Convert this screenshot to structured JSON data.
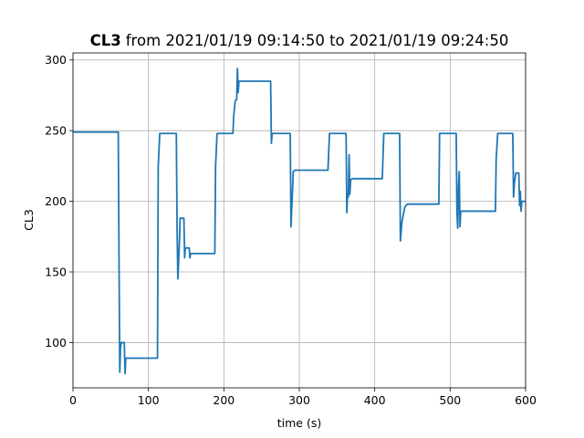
{
  "chart_data": {
    "type": "line",
    "title_bold": "CL3",
    "title": "from 2021/01/19 09:14:50 to 2021/01/19 09:24:50",
    "xlabel": "time (s)",
    "ylabel": "CL3",
    "xlim": [
      0,
      600
    ],
    "ylim": [
      68,
      305
    ],
    "xticks": [
      0,
      100,
      200,
      300,
      400,
      500,
      600
    ],
    "yticks": [
      100,
      150,
      200,
      250,
      300
    ],
    "grid": true,
    "x": [
      0,
      60,
      61,
      62,
      63,
      64,
      68,
      69,
      70,
      112,
      113,
      115,
      137,
      138,
      139,
      141,
      142,
      147,
      148,
      149,
      154,
      155,
      156,
      188,
      189,
      191,
      212,
      213,
      215,
      217,
      218,
      219,
      220,
      262,
      263,
      264,
      288,
      289,
      290,
      292,
      294,
      338,
      340,
      362,
      363,
      364,
      365,
      366,
      367,
      368,
      370,
      410,
      412,
      433,
      434,
      436,
      438,
      440,
      443,
      485,
      486,
      508,
      509,
      510,
      511,
      512,
      513,
      514,
      560,
      561,
      563,
      583,
      584,
      585,
      587,
      591,
      592,
      593,
      594,
      595,
      600
    ],
    "series": [
      {
        "name": "CL3",
        "color": "#1f77b4",
        "values": [
          249,
          249,
          160,
          79,
          97,
          100,
          100,
          78,
          89,
          89,
          225,
          248,
          248,
          180,
          145,
          170,
          188,
          188,
          160,
          167,
          167,
          160,
          163,
          163,
          225,
          248,
          248,
          260,
          271,
          272,
          294,
          277,
          285,
          285,
          241,
          248,
          248,
          182,
          195,
          221,
          222,
          222,
          248,
          248,
          192,
          205,
          203,
          233,
          205,
          215,
          216,
          216,
          248,
          248,
          172,
          185,
          191,
          196,
          198,
          198,
          248,
          248,
          192,
          181,
          210,
          221,
          182,
          193,
          193,
          230,
          248,
          248,
          203,
          212,
          220,
          220,
          197,
          207,
          193,
          200,
          200
        ]
      }
    ]
  }
}
